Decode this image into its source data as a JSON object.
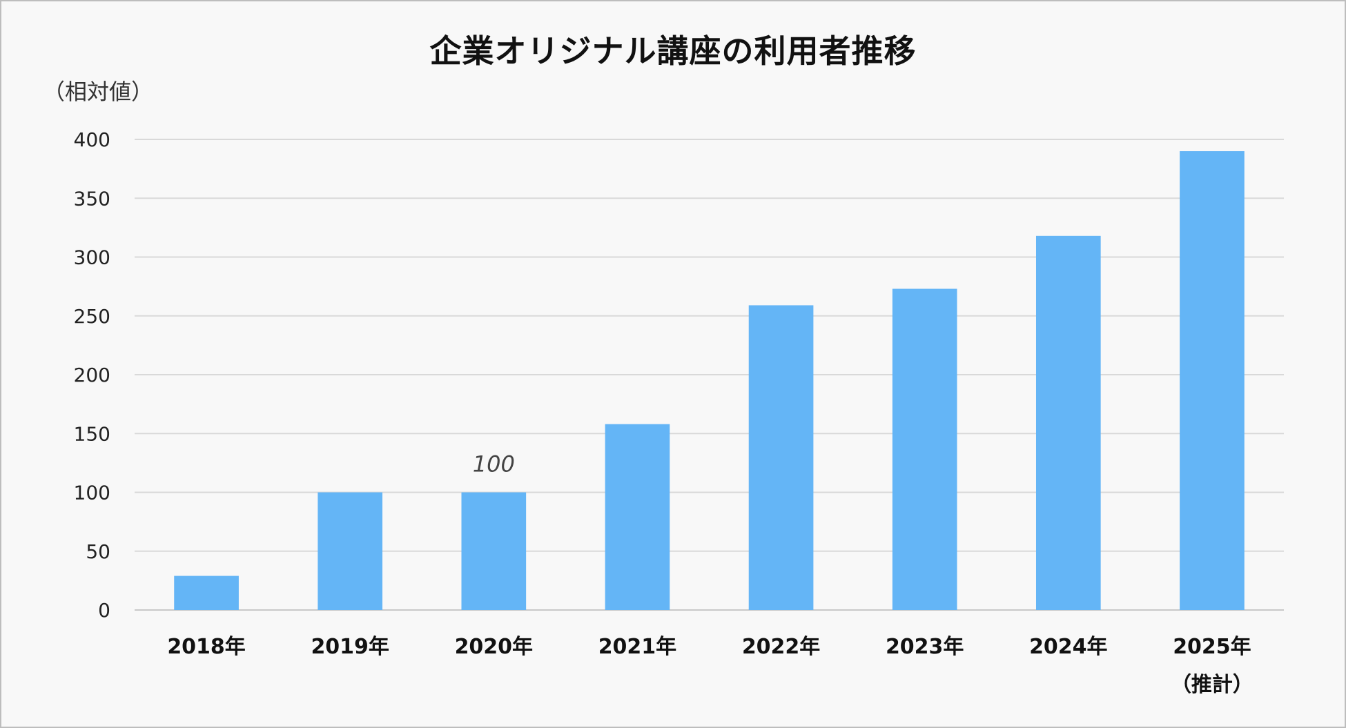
{
  "chart_data": {
    "type": "bar",
    "title": "企業オリジナル講座の利用者推移",
    "ylabel": "（相対値）",
    "xlabel": "",
    "categories": [
      "2018年",
      "2019年",
      "2020年",
      "2021年",
      "2022年",
      "2023年",
      "2024年",
      "2025年"
    ],
    "category_sublabels": [
      "",
      "",
      "",
      "",
      "",
      "",
      "",
      "（推計）"
    ],
    "values": [
      29,
      100,
      100,
      158,
      259,
      273,
      318,
      390
    ],
    "data_labels": [
      {
        "category_index": 2,
        "text": "100"
      }
    ],
    "ylim": [
      0,
      400
    ],
    "yticks": [
      0,
      50,
      100,
      150,
      200,
      250,
      300,
      350,
      400
    ],
    "grid": true,
    "legend": "none",
    "bar_color": "#64b5f6",
    "grid_color": "#d9d9d9"
  }
}
